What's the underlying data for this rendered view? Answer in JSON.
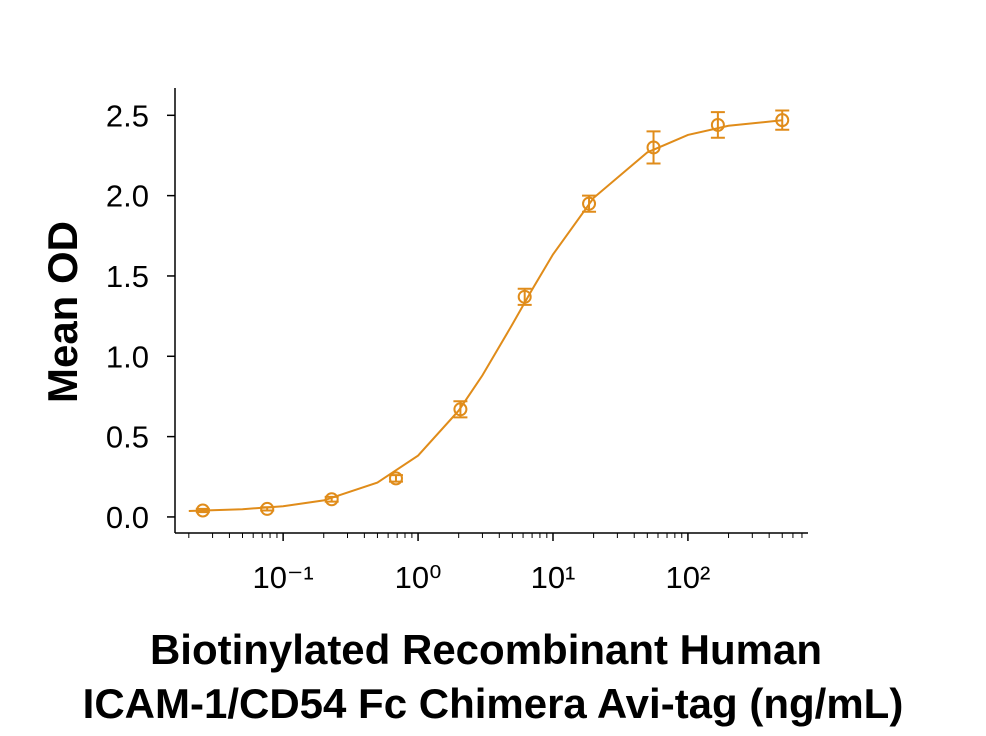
{
  "chart_data": {
    "type": "scatter",
    "ylabel": "Mean OD",
    "xlabel": [
      "Biotinylated Recombinant Human",
      "ICAM-1/CD54 Fc Chimera Avi-tag (ng/mL)"
    ],
    "xscale": "log",
    "xlim": [
      0.0158,
      776
    ],
    "ylim": [
      -0.1,
      2.67
    ],
    "xticks": [
      {
        "value": 0.1,
        "label": "10⁻¹"
      },
      {
        "value": 1,
        "label": "10⁰"
      },
      {
        "value": 10,
        "label": "10¹"
      },
      {
        "value": 100,
        "label": "10²"
      }
    ],
    "xminorticks": [
      0.02,
      0.03,
      0.04,
      0.05,
      0.06,
      0.07,
      0.08,
      0.09,
      0.2,
      0.3,
      0.4,
      0.5,
      0.6,
      0.7,
      0.8,
      0.9,
      2,
      3,
      4,
      5,
      6,
      7,
      8,
      9,
      20,
      30,
      40,
      50,
      60,
      70,
      80,
      90,
      200,
      300,
      400,
      500,
      600,
      700
    ],
    "yticks": [
      {
        "value": 0,
        "label": "0.0"
      },
      0.5,
      {
        "value": 1,
        "label": "1.0"
      },
      1.5,
      {
        "value": 2,
        "label": "2.0"
      },
      2.5
    ],
    "grid": false,
    "series": [
      {
        "mode": "markers",
        "color": "#e08c1a",
        "x": [
          0.0254,
          0.0762,
          0.229,
          0.686,
          2.06,
          6.17,
          18.5,
          55.6,
          166.7,
          500
        ],
        "values": [
          0.04,
          0.05,
          0.11,
          0.24,
          0.67,
          1.37,
          1.95,
          2.3,
          2.44,
          2.47
        ],
        "errors": [
          0.01,
          0.01,
          0.015,
          0.02,
          0.05,
          0.05,
          0.05,
          0.1,
          0.08,
          0.06
        ]
      },
      {
        "mode": "line",
        "color": "#e08c1a",
        "x": [
          0.02,
          0.05,
          0.1,
          0.2,
          0.5,
          1,
          2,
          3,
          5,
          7,
          10,
          20,
          50,
          100,
          200,
          500
        ],
        "values": [
          0.037,
          0.048,
          0.066,
          0.103,
          0.214,
          0.382,
          0.662,
          0.881,
          1.199,
          1.415,
          1.634,
          1.986,
          2.269,
          2.378,
          2.435,
          2.469
        ]
      }
    ]
  }
}
